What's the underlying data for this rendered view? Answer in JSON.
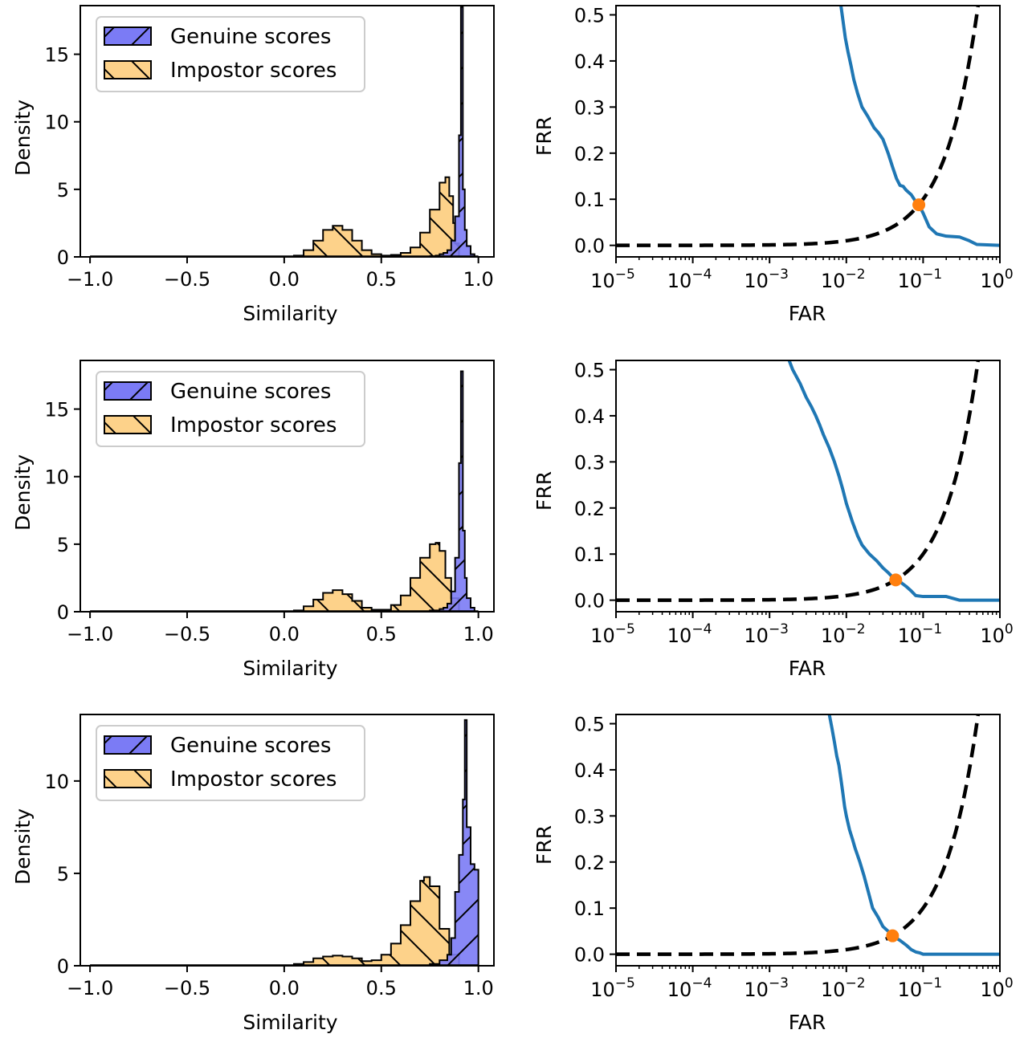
{
  "legend_labels": [
    "Genuine scores",
    "Impostor scores"
  ],
  "colors": {
    "genuine": "#7b7bf5",
    "impostor": "#fdd28a",
    "far_curve": "#1f77b4",
    "frr_curve": "#000000",
    "eer_point": "#ff7f0e"
  },
  "chart_data": [
    {
      "type": "bar",
      "subtype": "histogram-step",
      "xlabel": "Similarity",
      "ylabel": "Density",
      "xlim": [
        -1.05,
        1.08
      ],
      "ylim": [
        0,
        18.6
      ],
      "xticks": [
        -1.0,
        -0.5,
        0.0,
        0.5,
        1.0
      ],
      "xtick_labels": [
        "−1.0",
        "−0.5",
        "0.0",
        "0.5",
        "1.0"
      ],
      "yticks": [
        0,
        5,
        10,
        15
      ],
      "ytick_labels": [
        "0",
        "5",
        "10",
        "15"
      ],
      "legend": "top-left",
      "hatch": {
        "genuine": "/",
        "impostor": "\\"
      },
      "series": [
        {
          "name": "Genuine scores",
          "x": [
            0.7,
            0.75,
            0.78,
            0.8,
            0.82,
            0.84,
            0.86,
            0.88,
            0.9,
            0.91,
            0.92,
            0.93,
            0.94,
            0.96,
            0.98
          ],
          "y": [
            0,
            0.05,
            0.1,
            0.2,
            0.3,
            0.5,
            1.2,
            3.0,
            9.0,
            18.5,
            5.0,
            2.0,
            0.8,
            0.2,
            0
          ]
        },
        {
          "name": "Impostor scores",
          "x": [
            0.0,
            0.05,
            0.1,
            0.15,
            0.2,
            0.25,
            0.3,
            0.35,
            0.4,
            0.45,
            0.5,
            0.55,
            0.6,
            0.65,
            0.7,
            0.75,
            0.8,
            0.83,
            0.85,
            0.87,
            0.88,
            0.9
          ],
          "y": [
            0,
            0.1,
            0.5,
            1.2,
            2.0,
            2.3,
            2.0,
            1.2,
            0.5,
            0.2,
            0.1,
            0.15,
            0.3,
            0.7,
            1.8,
            3.5,
            5.5,
            5.9,
            4.5,
            2.5,
            1.0,
            0
          ]
        }
      ]
    },
    {
      "type": "line",
      "xlabel": "FAR",
      "ylabel": "FRR",
      "xscale": "log",
      "xlim": [
        1e-05,
        1
      ],
      "ylim": [
        -0.025,
        0.52
      ],
      "xticks": [
        1e-05,
        0.0001,
        0.001,
        0.01,
        0.1,
        1
      ],
      "xtick_labels": [
        [
          "10",
          "−5"
        ],
        [
          "10",
          "−4"
        ],
        [
          "10",
          "−3"
        ],
        [
          "10",
          "−2"
        ],
        [
          "10",
          "−1"
        ],
        [
          "10",
          "0"
        ]
      ],
      "yticks": [
        0.0,
        0.1,
        0.2,
        0.3,
        0.4,
        0.5
      ],
      "ytick_labels": [
        "0.0",
        "0.1",
        "0.2",
        "0.3",
        "0.4",
        "0.5"
      ],
      "series": [
        {
          "style": "solid",
          "x": [
            0.0085,
            0.009,
            0.0097,
            0.0105,
            0.0115,
            0.0125,
            0.014,
            0.016,
            0.019,
            0.023,
            0.026,
            0.03,
            0.035,
            0.04,
            0.045,
            0.05,
            0.055,
            0.06,
            0.07,
            0.08,
            0.09,
            0.1,
            0.12,
            0.15,
            0.2,
            0.3,
            0.4,
            0.5,
            1.0
          ],
          "y": [
            0.52,
            0.49,
            0.45,
            0.42,
            0.39,
            0.36,
            0.33,
            0.3,
            0.28,
            0.255,
            0.245,
            0.23,
            0.2,
            0.17,
            0.145,
            0.13,
            0.128,
            0.12,
            0.11,
            0.095,
            0.085,
            0.07,
            0.04,
            0.025,
            0.02,
            0.018,
            0.01,
            0.002,
            0.0
          ]
        },
        {
          "style": "dashed",
          "x": [
            1e-05,
            0.0001,
            0.001,
            0.01,
            0.02,
            0.05,
            0.09,
            0.15,
            0.2,
            0.3,
            0.4,
            0.52
          ],
          "y": [
            0.0,
            0.0005,
            0.002,
            0.012,
            0.02,
            0.045,
            0.09,
            0.15,
            0.2,
            0.3,
            0.4,
            0.52
          ]
        },
        {
          "style": "point",
          "x": [
            0.088
          ],
          "y": [
            0.088
          ]
        }
      ]
    },
    {
      "type": "bar",
      "subtype": "histogram-step",
      "xlabel": "Similarity",
      "ylabel": "Density",
      "xlim": [
        -1.05,
        1.08
      ],
      "ylim": [
        0,
        18.6
      ],
      "xticks": [
        -1.0,
        -0.5,
        0.0,
        0.5,
        1.0
      ],
      "xtick_labels": [
        "−1.0",
        "−0.5",
        "0.0",
        "0.5",
        "1.0"
      ],
      "yticks": [
        0,
        5,
        10,
        15
      ],
      "ytick_labels": [
        "0",
        "5",
        "10",
        "15"
      ],
      "legend": "top-left",
      "hatch": {
        "genuine": "/",
        "impostor": "\\"
      },
      "series": [
        {
          "name": "Genuine scores",
          "x": [
            0.7,
            0.75,
            0.8,
            0.82,
            0.84,
            0.86,
            0.88,
            0.9,
            0.91,
            0.92,
            0.93,
            0.94,
            0.96,
            0.98
          ],
          "y": [
            0,
            0.1,
            0.2,
            0.3,
            0.6,
            1.5,
            4.0,
            11.0,
            17.8,
            6.0,
            2.5,
            1.0,
            0.3,
            0
          ]
        },
        {
          "name": "Impostor scores",
          "x": [
            0.0,
            0.05,
            0.1,
            0.15,
            0.2,
            0.25,
            0.3,
            0.35,
            0.4,
            0.45,
            0.5,
            0.55,
            0.6,
            0.65,
            0.7,
            0.75,
            0.78,
            0.8,
            0.83,
            0.86,
            0.9
          ],
          "y": [
            0,
            0.1,
            0.4,
            0.9,
            1.4,
            1.6,
            1.3,
            0.8,
            0.3,
            0.15,
            0.15,
            0.5,
            1.2,
            2.5,
            4.0,
            5.0,
            5.1,
            4.5,
            2.5,
            1.0,
            0
          ]
        }
      ]
    },
    {
      "type": "line",
      "xlabel": "FAR",
      "ylabel": "FRR",
      "xscale": "log",
      "xlim": [
        1e-05,
        1
      ],
      "ylim": [
        -0.025,
        0.52
      ],
      "xticks": [
        1e-05,
        0.0001,
        0.001,
        0.01,
        0.1,
        1
      ],
      "xtick_labels": [
        [
          "10",
          "−5"
        ],
        [
          "10",
          "−4"
        ],
        [
          "10",
          "−3"
        ],
        [
          "10",
          "−2"
        ],
        [
          "10",
          "−1"
        ],
        [
          "10",
          "0"
        ]
      ],
      "yticks": [
        0.0,
        0.1,
        0.2,
        0.3,
        0.4,
        0.5
      ],
      "ytick_labels": [
        "0.0",
        "0.1",
        "0.2",
        "0.3",
        "0.4",
        "0.5"
      ],
      "series": [
        {
          "style": "solid",
          "x": [
            0.0018,
            0.002,
            0.0025,
            0.003,
            0.0035,
            0.004,
            0.0045,
            0.005,
            0.006,
            0.007,
            0.008,
            0.009,
            0.01,
            0.012,
            0.014,
            0.016,
            0.02,
            0.025,
            0.03,
            0.035,
            0.04,
            0.045,
            0.05,
            0.06,
            0.07,
            0.08,
            0.1,
            0.2,
            0.3,
            1.0
          ],
          "y": [
            0.52,
            0.5,
            0.47,
            0.44,
            0.42,
            0.4,
            0.38,
            0.36,
            0.33,
            0.3,
            0.27,
            0.24,
            0.21,
            0.17,
            0.14,
            0.12,
            0.1,
            0.085,
            0.07,
            0.06,
            0.05,
            0.045,
            0.04,
            0.03,
            0.02,
            0.01,
            0.008,
            0.008,
            0.0,
            0.0
          ]
        },
        {
          "style": "dashed",
          "x": [
            1e-05,
            0.0001,
            0.001,
            0.01,
            0.02,
            0.044,
            0.1,
            0.2,
            0.3,
            0.4,
            0.52
          ],
          "y": [
            0.0,
            0.0005,
            0.002,
            0.012,
            0.02,
            0.044,
            0.1,
            0.2,
            0.3,
            0.4,
            0.52
          ]
        },
        {
          "style": "point",
          "x": [
            0.044
          ],
          "y": [
            0.044
          ]
        }
      ]
    },
    {
      "type": "bar",
      "subtype": "histogram-step",
      "xlabel": "Similarity",
      "ylabel": "Density",
      "xlim": [
        -1.05,
        1.08
      ],
      "ylim": [
        0,
        13.6
      ],
      "xticks": [
        -1.0,
        -0.5,
        0.0,
        0.5,
        1.0
      ],
      "xtick_labels": [
        "−1.0",
        "−0.5",
        "0.0",
        "0.5",
        "1.0"
      ],
      "yticks": [
        0,
        5,
        10
      ],
      "ytick_labels": [
        "0",
        "5",
        "10"
      ],
      "legend": "top-left",
      "hatch": {
        "genuine": "/",
        "impostor": "\\"
      },
      "series": [
        {
          "name": "Genuine scores",
          "x": [
            0.7,
            0.75,
            0.8,
            0.84,
            0.86,
            0.88,
            0.9,
            0.92,
            0.93,
            0.94,
            0.96,
            0.98,
            1.0
          ],
          "y": [
            0,
            0.1,
            0.3,
            0.6,
            1.5,
            4.0,
            6.0,
            9.0,
            13.3,
            7.5,
            5.5,
            5.2,
            0
          ]
        },
        {
          "name": "Impostor scores",
          "x": [
            0.0,
            0.05,
            0.1,
            0.15,
            0.2,
            0.25,
            0.3,
            0.35,
            0.4,
            0.45,
            0.5,
            0.55,
            0.6,
            0.65,
            0.7,
            0.72,
            0.75,
            0.8,
            0.85,
            0.9
          ],
          "y": [
            0,
            0.1,
            0.2,
            0.4,
            0.5,
            0.55,
            0.5,
            0.4,
            0.25,
            0.3,
            0.6,
            1.2,
            2.2,
            3.5,
            4.6,
            4.8,
            4.3,
            2.0,
            0.6,
            0
          ]
        }
      ]
    },
    {
      "type": "line",
      "xlabel": "FAR",
      "ylabel": "FRR",
      "xscale": "log",
      "xlim": [
        1e-05,
        1
      ],
      "ylim": [
        -0.025,
        0.52
      ],
      "xticks": [
        1e-05,
        0.0001,
        0.001,
        0.01,
        0.1,
        1
      ],
      "xtick_labels": [
        [
          "10",
          "−5"
        ],
        [
          "10",
          "−4"
        ],
        [
          "10",
          "−3"
        ],
        [
          "10",
          "−2"
        ],
        [
          "10",
          "−1"
        ],
        [
          "10",
          "0"
        ]
      ],
      "yticks": [
        0.0,
        0.1,
        0.2,
        0.3,
        0.4,
        0.5
      ],
      "ytick_labels": [
        "0.0",
        "0.1",
        "0.2",
        "0.3",
        "0.4",
        "0.5"
      ],
      "series": [
        {
          "style": "solid",
          "x": [
            0.006,
            0.0065,
            0.007,
            0.0075,
            0.008,
            0.0085,
            0.009,
            0.0095,
            0.01,
            0.011,
            0.012,
            0.013,
            0.015,
            0.017,
            0.019,
            0.022,
            0.026,
            0.03,
            0.035,
            0.04,
            0.05,
            0.06,
            0.07,
            0.08,
            0.09,
            0.1,
            1.0
          ],
          "y": [
            0.52,
            0.49,
            0.46,
            0.43,
            0.41,
            0.38,
            0.35,
            0.32,
            0.3,
            0.27,
            0.25,
            0.23,
            0.2,
            0.17,
            0.14,
            0.1,
            0.08,
            0.06,
            0.05,
            0.04,
            0.03,
            0.02,
            0.01,
            0.005,
            0.003,
            0.0,
            0.0
          ]
        },
        {
          "style": "dashed",
          "x": [
            1e-05,
            0.0001,
            0.001,
            0.01,
            0.02,
            0.04,
            0.1,
            0.2,
            0.3,
            0.4,
            0.52
          ],
          "y": [
            0.0,
            0.0005,
            0.002,
            0.012,
            0.02,
            0.04,
            0.1,
            0.2,
            0.3,
            0.4,
            0.52
          ]
        },
        {
          "style": "point",
          "x": [
            0.04
          ],
          "y": [
            0.04
          ]
        }
      ]
    }
  ]
}
